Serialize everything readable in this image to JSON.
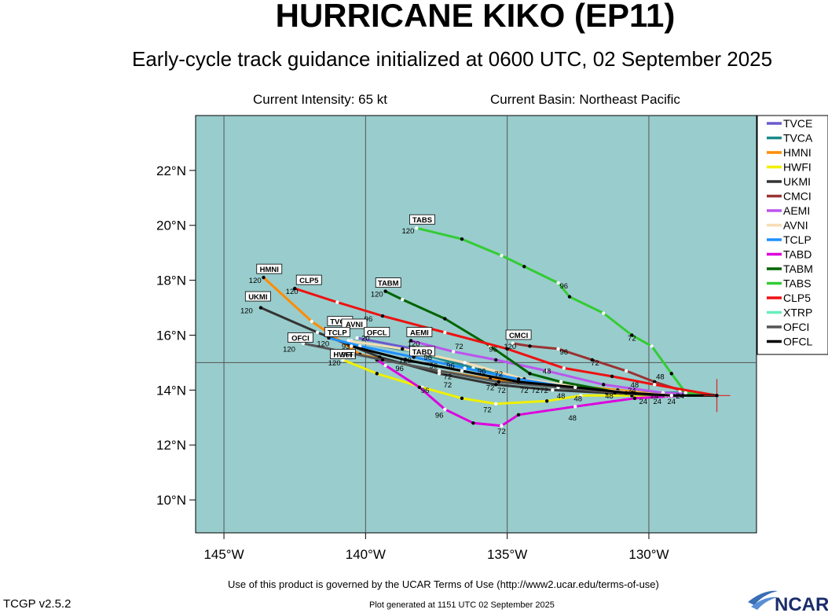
{
  "header": {
    "title": "HURRICANE KIKO (EP11)",
    "subtitle": "Early-cycle track guidance initialized at 0600 UTC, 02 September 2025",
    "intensity": "Current Intensity: 65 kt",
    "basin": "Current Basin: Northeast Pacific"
  },
  "footer": {
    "terms": "Use of this product is governed by the UCAR Terms of Use (http://www2.ucar.edu/terms-of-use)",
    "version": "TCGP v2.5.2",
    "generated": "Plot generated at 1151 UTC   02 September 2025",
    "logo_text": "NCAR"
  },
  "colors": {
    "ocean": "#99cccc",
    "grid": "#555555"
  },
  "chart_data": {
    "type": "map-track",
    "xlim": [
      -146,
      -126.2
    ],
    "ylim": [
      8.8,
      24
    ],
    "lon_ticks": [
      -145,
      -140,
      -135,
      -130
    ],
    "lat_ticks": [
      10,
      12,
      14,
      16,
      18,
      20,
      22
    ],
    "lon_tick_labels": [
      "145°W",
      "140°W",
      "135°W",
      "130°W"
    ],
    "lat_tick_labels": [
      "10°N",
      "12°N",
      "14°N",
      "16°N",
      "18°N",
      "20°N",
      "22°N"
    ],
    "storm_position": [
      -127.6,
      13.8
    ],
    "legend": [
      "TVCE",
      "TVCA",
      "HMNI",
      "HWFI",
      "UKMI",
      "CMCI",
      "AEMI",
      "AVNI",
      "TCLP",
      "TABD",
      "TABM",
      "TABS",
      "CLP5",
      "XTRP",
      "OFCI",
      "OFCL"
    ],
    "series": [
      {
        "name": "TVCE",
        "color": "#6a5acd",
        "points": [
          [
            -127.6,
            13.8
          ],
          [
            -128.9,
            13.9
          ],
          [
            -130.5,
            13.9
          ],
          [
            -132.3,
            14.1
          ],
          [
            -134.3,
            14.3
          ],
          [
            -136.2,
            14.8
          ],
          [
            -138.3,
            15.5
          ],
          [
            -140.3,
            15.9
          ]
        ],
        "tagged": {}
      },
      {
        "name": "TVCA",
        "color": "#1a8a8a",
        "points": [
          [
            -127.6,
            13.8
          ],
          [
            -128.9,
            13.9
          ],
          [
            -130.5,
            13.9
          ],
          [
            -132.3,
            14.1
          ],
          [
            -134.3,
            14.3
          ],
          [
            -136.2,
            14.8
          ],
          [
            -138.3,
            15.4
          ],
          [
            -140.5,
            15.8
          ]
        ],
        "tagged": {}
      },
      {
        "name": "HMNI",
        "color": "#ff8c00",
        "points": [
          [
            -127.6,
            13.8
          ],
          [
            -129.3,
            13.8
          ],
          [
            -131.1,
            14.0
          ],
          [
            -133.2,
            14.2
          ],
          [
            -135.6,
            14.4
          ],
          [
            -138.0,
            14.8
          ],
          [
            -140.2,
            15.3
          ],
          [
            -141.9,
            16.5
          ],
          [
            -143.6,
            18.1
          ]
        ],
        "tagged": {
          "120": 8
        }
      },
      {
        "name": "HWFI",
        "color": "#f0f000",
        "points": [
          [
            -127.6,
            13.8
          ],
          [
            -129.3,
            13.8
          ],
          [
            -130.6,
            13.8
          ],
          [
            -132.4,
            13.8
          ],
          [
            -133.6,
            13.6
          ],
          [
            -135.4,
            13.5
          ],
          [
            -136.6,
            13.7
          ],
          [
            -138.0,
            14.1
          ],
          [
            -139.6,
            14.6
          ],
          [
            -140.8,
            15.1
          ]
        ],
        "tagged": {
          "24": 2,
          "48": 3,
          "72": 5,
          "96": 7,
          "120": 9
        }
      },
      {
        "name": "UKMI",
        "color": "#333333",
        "points": [
          [
            -127.6,
            13.8
          ],
          [
            -129.5,
            13.8
          ],
          [
            -131.5,
            13.9
          ],
          [
            -133.4,
            14.0
          ],
          [
            -135.4,
            14.2
          ],
          [
            -137.4,
            14.6
          ],
          [
            -139.5,
            15.2
          ],
          [
            -141.7,
            16.1
          ],
          [
            -143.7,
            17.0
          ]
        ],
        "tagged": {
          "120": 8
        }
      },
      {
        "name": "CMCI",
        "color": "#993333",
        "points": [
          [
            -127.6,
            13.8
          ],
          [
            -128.9,
            14.0
          ],
          [
            -129.8,
            14.3
          ],
          [
            -130.8,
            14.7
          ],
          [
            -132.0,
            15.1
          ],
          [
            -133.2,
            15.5
          ],
          [
            -134.2,
            15.6
          ],
          [
            -134.8,
            15.7
          ]
        ],
        "tagged": {
          "48": 1,
          "72": 3,
          "96": 5,
          "120": 7
        }
      },
      {
        "name": "AEMI",
        "color": "#bb55ee",
        "points": [
          [
            -127.6,
            13.8
          ],
          [
            -129.5,
            13.9
          ],
          [
            -131.6,
            14.2
          ],
          [
            -133.6,
            14.7
          ],
          [
            -135.4,
            15.1
          ],
          [
            -136.9,
            15.4
          ],
          [
            -138.4,
            15.8
          ]
        ],
        "tagged": {
          "120": 6
        }
      },
      {
        "name": "AVNI",
        "color": "#f5deb3",
        "points": [
          [
            -127.6,
            13.8
          ],
          [
            -129.0,
            13.8
          ],
          [
            -130.6,
            13.9
          ],
          [
            -132.4,
            14.1
          ],
          [
            -134.4,
            14.4
          ],
          [
            -136.5,
            15.0
          ],
          [
            -138.7,
            15.5
          ],
          [
            -140.6,
            15.8
          ]
        ],
        "tagged": {}
      },
      {
        "name": "TCLP",
        "color": "#1e90ff",
        "points": [
          [
            -127.6,
            13.8
          ],
          [
            -129.3,
            13.8
          ],
          [
            -131.0,
            13.9
          ],
          [
            -132.8,
            14.1
          ],
          [
            -134.6,
            14.4
          ],
          [
            -136.5,
            14.8
          ],
          [
            -138.3,
            15.2
          ],
          [
            -140.2,
            15.6
          ],
          [
            -141.3,
            15.9
          ]
        ],
        "tagged": {}
      },
      {
        "name": "TABD",
        "color": "#dd00dd",
        "points": [
          [
            -127.6,
            13.8
          ],
          [
            -128.7,
            13.8
          ],
          [
            -130.5,
            13.7
          ],
          [
            -132.6,
            13.4
          ],
          [
            -134.6,
            13.1
          ],
          [
            -135.2,
            12.7
          ],
          [
            -136.2,
            12.8
          ],
          [
            -137.2,
            13.3
          ],
          [
            -138.1,
            14.1
          ],
          [
            -139.3,
            14.9
          ],
          [
            -139.6,
            15.1
          ]
        ],
        "tagged": {
          "24": 2,
          "48": 3,
          "72": 5,
          "96": 8,
          "120": 10
        }
      },
      {
        "name": "TABM",
        "color": "#006400",
        "points": [
          [
            -127.6,
            13.8
          ],
          [
            -129.4,
            13.8
          ],
          [
            -131.0,
            13.9
          ],
          [
            -133.1,
            14.3
          ],
          [
            -134.2,
            14.6
          ],
          [
            -135.6,
            15.6
          ],
          [
            -137.2,
            16.6
          ],
          [
            -138.7,
            17.3
          ],
          [
            -139.3,
            17.6
          ]
        ],
        "tagged": {
          "120": 8
        }
      },
      {
        "name": "TABS",
        "color": "#33cc33",
        "points": [
          [
            -127.6,
            13.8
          ],
          [
            -128.7,
            13.9
          ],
          [
            -129.2,
            14.6
          ],
          [
            -129.9,
            15.6
          ],
          [
            -130.6,
            16.0
          ],
          [
            -131.6,
            16.8
          ],
          [
            -132.8,
            17.4
          ],
          [
            -133.2,
            17.9
          ],
          [
            -134.4,
            18.5
          ],
          [
            -135.2,
            18.9
          ],
          [
            -136.6,
            19.5
          ],
          [
            -138.2,
            19.9
          ]
        ],
        "tagged": {
          "72": 4,
          "96": 7,
          "120": 11
        }
      },
      {
        "name": "CLP5",
        "color": "#ee1111",
        "points": [
          [
            -127.6,
            13.8
          ],
          [
            -129.8,
            14.2
          ],
          [
            -131.3,
            14.5
          ],
          [
            -133.0,
            14.8
          ],
          [
            -135.0,
            15.5
          ],
          [
            -137.2,
            16.1
          ],
          [
            -139.4,
            16.7
          ],
          [
            -141.0,
            17.2
          ],
          [
            -142.5,
            17.7
          ]
        ],
        "tagged": {
          "120": 8
        }
      },
      {
        "name": "XTRP",
        "color": "#66eebb",
        "points": [
          [
            -127.6,
            13.8
          ],
          [
            -129.4,
            13.8
          ]
        ],
        "tagged": {}
      },
      {
        "name": "OFCI",
        "color": "#555555",
        "points": [
          [
            -127.6,
            13.8
          ],
          [
            -129.3,
            13.8
          ],
          [
            -131.2,
            13.9
          ],
          [
            -133.2,
            14.1
          ],
          [
            -135.3,
            14.3
          ],
          [
            -137.4,
            14.7
          ],
          [
            -139.4,
            15.1
          ],
          [
            -142.2,
            15.7
          ]
        ],
        "tagged": {
          "120": 7
        }
      },
      {
        "name": "OFCL",
        "color": "#000000",
        "points": [
          [
            -127.6,
            13.8
          ],
          [
            -129.2,
            13.8
          ],
          [
            -130.8,
            13.9
          ],
          [
            -132.6,
            14.1
          ],
          [
            -134.6,
            14.3
          ],
          [
            -136.6,
            14.7
          ],
          [
            -138.6,
            15.1
          ],
          [
            -140.5,
            15.6
          ]
        ],
        "tagged": {}
      }
    ],
    "labels": [
      {
        "text": "TABS",
        "lon": -138.0,
        "lat": 20.1,
        "boxed": true
      },
      {
        "text": "120",
        "lon": -138.5,
        "lat": 19.7,
        "boxed": false
      },
      {
        "text": "HMNI",
        "lon": -143.4,
        "lat": 18.3,
        "boxed": true
      },
      {
        "text": "120",
        "lon": -143.9,
        "lat": 17.9,
        "boxed": false
      },
      {
        "text": "CLP5",
        "lon": -142.0,
        "lat": 17.9,
        "boxed": true
      },
      {
        "text": "120",
        "lon": -142.6,
        "lat": 17.5,
        "boxed": false
      },
      {
        "text": "TABM",
        "lon": -139.2,
        "lat": 17.8,
        "boxed": true
      },
      {
        "text": "120",
        "lon": -139.6,
        "lat": 17.4,
        "boxed": false
      },
      {
        "text": "UKMI",
        "lon": -143.8,
        "lat": 17.3,
        "boxed": true
      },
      {
        "text": "120",
        "lon": -144.2,
        "lat": 16.8,
        "boxed": false
      },
      {
        "text": "96",
        "lon": -139.9,
        "lat": 16.5,
        "boxed": false
      },
      {
        "text": "96",
        "lon": -133.0,
        "lat": 17.7,
        "boxed": false
      },
      {
        "text": "TVCE",
        "lon": -140.9,
        "lat": 16.4,
        "boxed": true
      },
      {
        "text": "AVNI",
        "lon": -140.4,
        "lat": 16.3,
        "boxed": true
      },
      {
        "text": "OFCL",
        "lon": -139.6,
        "lat": 16.0,
        "boxed": true
      },
      {
        "text": "TCLP",
        "lon": -141.0,
        "lat": 16.0,
        "boxed": true
      },
      {
        "text": "OFCI",
        "lon": -142.3,
        "lat": 15.8,
        "boxed": true
      },
      {
        "text": "120",
        "lon": -142.7,
        "lat": 15.4,
        "boxed": false
      },
      {
        "text": "120",
        "lon": -141.5,
        "lat": 15.6,
        "boxed": false
      },
      {
        "text": "20",
        "lon": -140.0,
        "lat": 15.8,
        "boxed": false
      },
      {
        "text": "93",
        "lon": -140.7,
        "lat": 15.5,
        "boxed": false
      },
      {
        "text": "AEMI",
        "lon": -138.1,
        "lat": 16.0,
        "boxed": true
      },
      {
        "text": "120",
        "lon": -138.3,
        "lat": 15.6,
        "boxed": false
      },
      {
        "text": "CMCI",
        "lon": -134.6,
        "lat": 15.9,
        "boxed": true
      },
      {
        "text": "120",
        "lon": -134.9,
        "lat": 15.5,
        "boxed": false
      },
      {
        "text": "TABD",
        "lon": -138.0,
        "lat": 15.3,
        "boxed": true
      },
      {
        "text": "120",
        "lon": -138.6,
        "lat": 15.0,
        "boxed": false
      },
      {
        "text": "HWFI",
        "lon": -140.8,
        "lat": 15.2,
        "boxed": true
      },
      {
        "text": "96FI",
        "lon": -140.6,
        "lat": 15.2,
        "boxed": false
      },
      {
        "text": "120",
        "lon": -141.1,
        "lat": 14.9,
        "boxed": false
      },
      {
        "text": "72",
        "lon": -130.6,
        "lat": 15.8,
        "boxed": false
      },
      {
        "text": "72",
        "lon": -136.7,
        "lat": 15.5,
        "boxed": false
      },
      {
        "text": "96",
        "lon": -135.5,
        "lat": 15.4,
        "boxed": false
      },
      {
        "text": "96",
        "lon": -133.0,
        "lat": 15.3,
        "boxed": false
      },
      {
        "text": "72",
        "lon": -131.9,
        "lat": 14.9,
        "boxed": false
      },
      {
        "text": "96",
        "lon": -137.8,
        "lat": 15.1,
        "boxed": false
      },
      {
        "text": "96",
        "lon": -137.0,
        "lat": 14.8,
        "boxed": false
      },
      {
        "text": "96",
        "lon": -137.6,
        "lat": 14.8,
        "boxed": false
      },
      {
        "text": "96",
        "lon": -138.8,
        "lat": 14.7,
        "boxed": false
      },
      {
        "text": "96",
        "lon": -135.9,
        "lat": 14.6,
        "boxed": false
      },
      {
        "text": "72",
        "lon": -135.3,
        "lat": 14.5,
        "boxed": false
      },
      {
        "text": "72",
        "lon": -137.1,
        "lat": 14.4,
        "boxed": false
      },
      {
        "text": "72",
        "lon": -137.1,
        "lat": 14.1,
        "boxed": false
      },
      {
        "text": "48",
        "lon": -133.6,
        "lat": 14.6,
        "boxed": false
      },
      {
        "text": "48",
        "lon": -129.6,
        "lat": 14.4,
        "boxed": false
      },
      {
        "text": "48",
        "lon": -130.5,
        "lat": 14.1,
        "boxed": false
      },
      {
        "text": "72",
        "lon": -135.6,
        "lat": 14.0,
        "boxed": false
      },
      {
        "text": "72",
        "lon": -135.2,
        "lat": 13.9,
        "boxed": false
      },
      {
        "text": "72",
        "lon": -134.4,
        "lat": 13.9,
        "boxed": false
      },
      {
        "text": "72",
        "lon": -134.0,
        "lat": 13.9,
        "boxed": false
      },
      {
        "text": "72",
        "lon": -133.7,
        "lat": 13.9,
        "boxed": false
      },
      {
        "text": "96",
        "lon": -137.9,
        "lat": 13.9,
        "boxed": false
      },
      {
        "text": "48",
        "lon": -133.1,
        "lat": 13.7,
        "boxed": false
      },
      {
        "text": "48",
        "lon": -132.5,
        "lat": 13.6,
        "boxed": false
      },
      {
        "text": "48",
        "lon": -131.4,
        "lat": 13.7,
        "boxed": false
      },
      {
        "text": "24",
        "lon": -130.6,
        "lat": 13.9,
        "boxed": false
      },
      {
        "text": "24",
        "lon": -129.8,
        "lat": 13.7,
        "boxed": false
      },
      {
        "text": "24",
        "lon": -128.9,
        "lat": 13.7,
        "boxed": false
      },
      {
        "text": "72",
        "lon": -135.7,
        "lat": 13.2,
        "boxed": false
      },
      {
        "text": "96",
        "lon": -137.4,
        "lat": 13.0,
        "boxed": false
      },
      {
        "text": "48",
        "lon": -132.7,
        "lat": 12.9,
        "boxed": false
      },
      {
        "text": "72",
        "lon": -135.2,
        "lat": 12.4,
        "boxed": false
      },
      {
        "text": "24",
        "lon": -130.2,
        "lat": 13.5,
        "boxed": false
      },
      {
        "text": "24",
        "lon": -129.7,
        "lat": 13.5,
        "boxed": false
      },
      {
        "text": "24",
        "lon": -129.2,
        "lat": 13.5,
        "boxed": false
      }
    ]
  }
}
